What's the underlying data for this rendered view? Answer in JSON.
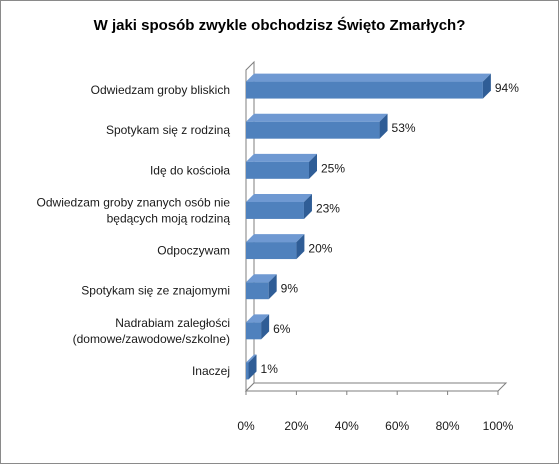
{
  "chart_data": {
    "type": "bar",
    "orientation": "horizontal",
    "title": "W jaki sposób zwykle obchodzisz Święto Zmarłych?",
    "categories": [
      [
        "Odwiedzam groby bliskich"
      ],
      [
        "Spotykam się z rodziną"
      ],
      [
        "Idę do kościoła"
      ],
      [
        "Odwiedzam groby znanych osób nie",
        "będących moją rodziną"
      ],
      [
        "Odpoczywam"
      ],
      [
        "Spotykam się ze znajomymi"
      ],
      [
        "Nadrabiam zaległości",
        "(domowe/zawodowe/szkolne)"
      ],
      [
        "Inaczej"
      ]
    ],
    "values": [
      94,
      53,
      25,
      23,
      20,
      9,
      6,
      1
    ],
    "value_labels": [
      "94%",
      "53%",
      "25%",
      "23%",
      "20%",
      "9%",
      "6%",
      "1%"
    ],
    "x_ticks": [
      "0%",
      "20%",
      "40%",
      "60%",
      "80%",
      "100%"
    ],
    "xlim": [
      0,
      100
    ],
    "grid": false,
    "style": "3d",
    "colors": {
      "bar_front": "#4f81bd",
      "bar_top": "#6f99d2",
      "bar_side": "#2f5d96",
      "wall": "#7f7f7f"
    }
  }
}
